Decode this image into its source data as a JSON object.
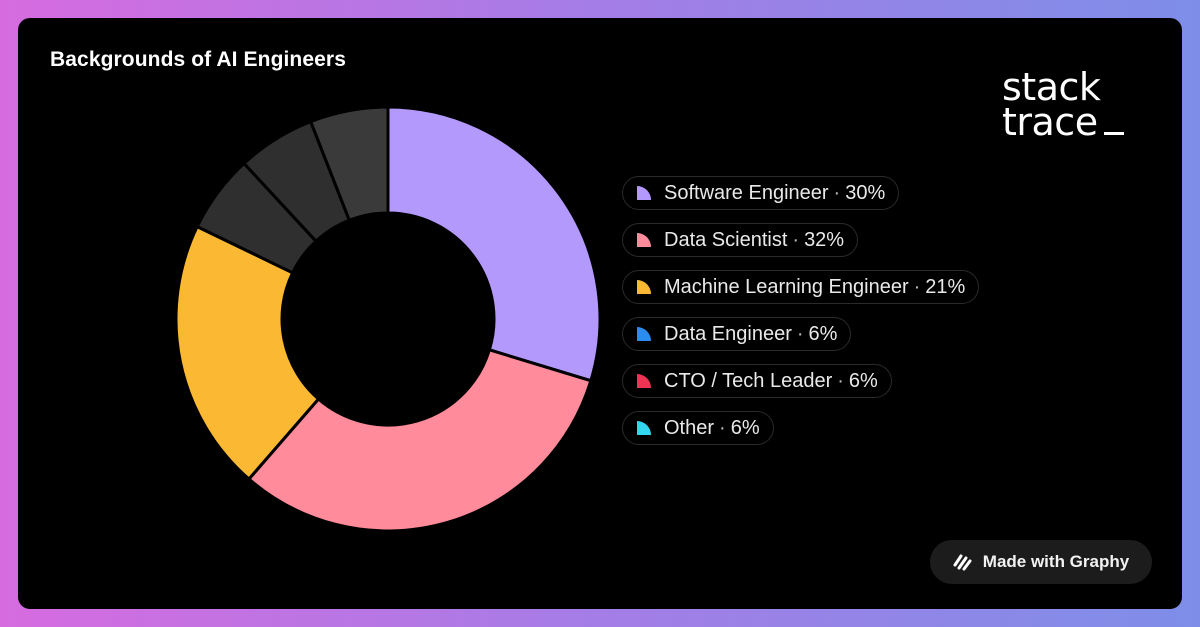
{
  "brand": {
    "line1": "stack",
    "line2": "trace"
  },
  "badge": {
    "label": "Made with Graphy",
    "icon": "graphy-logo-icon"
  },
  "chart_data": {
    "type": "pie",
    "title": "Backgrounds of AI Engineers",
    "inner_radius_ratio": 0.5,
    "categories": [
      "Software Engineer",
      "Data Scientist",
      "Machine Learning Engineer",
      "Data Engineer",
      "CTO / Tech Leader",
      "Other"
    ],
    "values": [
      30,
      32,
      21,
      6,
      6,
      6
    ],
    "value_labels": [
      "30%",
      "32%",
      "21%",
      "6%",
      "6%",
      "6%"
    ],
    "colors": [
      "#b499fd",
      "#ff8b9b",
      "#fbb933",
      "#2f2f2f",
      "#2f2f2f",
      "#3a3a3a"
    ],
    "legend_colors": [
      "#b499fd",
      "#ff8b9b",
      "#fbb933",
      "#2b8cf0",
      "#ee3355",
      "#33d6ee"
    ],
    "legend_position": "right"
  }
}
